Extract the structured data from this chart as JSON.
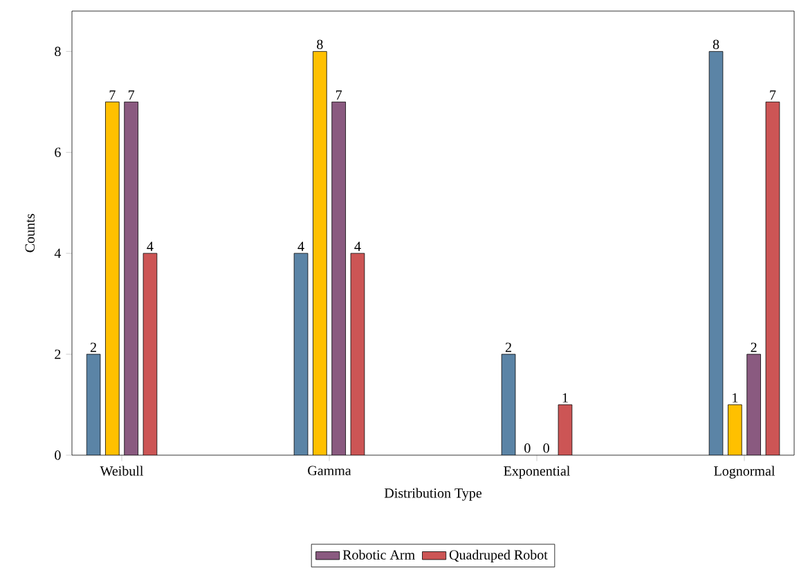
{
  "chart_data": {
    "type": "bar",
    "xlabel": "Distribution Type",
    "ylabel": "Counts",
    "categories": [
      "Weibull",
      "Gamma",
      "Exponential",
      "Lognormal"
    ],
    "series": [
      {
        "color": "#5b84a6",
        "values": [
          2,
          4,
          2,
          8
        ]
      },
      {
        "color": "#ffc000",
        "values": [
          7,
          8,
          0,
          1
        ]
      },
      {
        "name": "Robotic Arm",
        "color": "#8a5a80",
        "values": [
          7,
          7,
          0,
          2
        ]
      },
      {
        "name": "Quadruped Robot",
        "color": "#cc5555",
        "values": [
          4,
          4,
          1,
          7
        ]
      }
    ],
    "ylim": [
      0,
      8.8
    ],
    "yticks": [
      0,
      2,
      4,
      6,
      8
    ],
    "data_labels": true,
    "legend": "bottom"
  }
}
